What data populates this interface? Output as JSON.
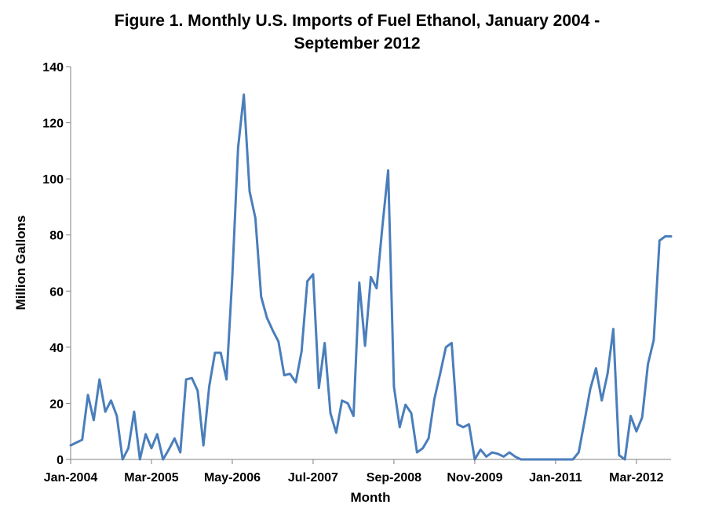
{
  "chart_data": {
    "type": "line",
    "title_lines": [
      "Figure 1.  Monthly U.S. Imports of Fuel Ethanol, January 2004 -",
      "September 2012"
    ],
    "xlabel": "Month",
    "ylabel": "Million Gallons",
    "ylim": [
      0,
      140
    ],
    "yticks": [
      0,
      20,
      40,
      60,
      80,
      100,
      120,
      140
    ],
    "x_range": [
      "Jan-2004",
      "Sep-2012"
    ],
    "xtick_labels": [
      "Jan-2004",
      "Mar-2005",
      "May-2006",
      "Jul-2007",
      "Sep-2008",
      "Nov-2009",
      "Jan-2011",
      "Mar-2012"
    ],
    "grid": false,
    "legend": "none",
    "color": "#4a7ebb",
    "series": [
      {
        "x": [
          "Jan-2004",
          "Feb-2004",
          "Mar-2004",
          "Apr-2004",
          "May-2004",
          "Jun-2004",
          "Jul-2004",
          "Aug-2004",
          "Sep-2004",
          "Oct-2004",
          "Nov-2004",
          "Dec-2004",
          "Jan-2005",
          "Feb-2005",
          "Mar-2005",
          "Apr-2005",
          "May-2005",
          "Jun-2005",
          "Jul-2005",
          "Aug-2005",
          "Sep-2005",
          "Oct-2005",
          "Nov-2005",
          "Dec-2005",
          "Jan-2006",
          "Feb-2006",
          "Mar-2006",
          "Apr-2006",
          "May-2006",
          "Jun-2006",
          "Jul-2006",
          "Aug-2006",
          "Sep-2006",
          "Oct-2006",
          "Nov-2006",
          "Dec-2006",
          "Jan-2007",
          "Feb-2007",
          "Mar-2007",
          "Apr-2007",
          "May-2007",
          "Jun-2007",
          "Jul-2007",
          "Aug-2007",
          "Sep-2007",
          "Oct-2007",
          "Nov-2007",
          "Dec-2007",
          "Jan-2008",
          "Feb-2008",
          "Mar-2008",
          "Apr-2008",
          "May-2008",
          "Jun-2008",
          "Jul-2008",
          "Aug-2008",
          "Sep-2008",
          "Oct-2008",
          "Nov-2008",
          "Dec-2008",
          "Jan-2009",
          "Feb-2009",
          "Mar-2009",
          "Apr-2009",
          "May-2009",
          "Jun-2009",
          "Jul-2009",
          "Aug-2009",
          "Sep-2009",
          "Oct-2009",
          "Nov-2009",
          "Dec-2009",
          "Jan-2010",
          "Feb-2010",
          "Mar-2010",
          "Apr-2010",
          "May-2010",
          "Jun-2010",
          "Jul-2010",
          "Aug-2010",
          "Sep-2010",
          "Oct-2010",
          "Nov-2010",
          "Dec-2010",
          "Jan-2011",
          "Feb-2011",
          "Mar-2011",
          "Apr-2011",
          "May-2011",
          "Jun-2011",
          "Jul-2011",
          "Aug-2011",
          "Sep-2011",
          "Oct-2011",
          "Nov-2011",
          "Dec-2011",
          "Jan-2012",
          "Feb-2012",
          "Mar-2012",
          "Apr-2012",
          "May-2012",
          "Jun-2012",
          "Jul-2012",
          "Aug-2012",
          "Sep-2012"
        ],
        "y": [
          5,
          6,
          7,
          23,
          14,
          28.5,
          17,
          21,
          15.5,
          0,
          4,
          17,
          0,
          9,
          4,
          9,
          0,
          3.5,
          7.5,
          2.5,
          28.5,
          29,
          24.5,
          5,
          26,
          38,
          38,
          28.5,
          65,
          111,
          130,
          95.5,
          86,
          58,
          50.5,
          46,
          42,
          30,
          30.5,
          27.5,
          38.5,
          63.5,
          66,
          25.5,
          41.5,
          16.5,
          9.5,
          21,
          20,
          15.5,
          63,
          40.5,
          65,
          61,
          83,
          103,
          26,
          11.5,
          19.5,
          16.5,
          2.5,
          4,
          7.5,
          21.5,
          30.5,
          40,
          41.5,
          12.5,
          11.5,
          12.5,
          0,
          3.5,
          1,
          2.5,
          2,
          1,
          2.5,
          1,
          0,
          0,
          0,
          0,
          0,
          0,
          0,
          0,
          0,
          0,
          2.5,
          13.5,
          25,
          32.5,
          21,
          30.5,
          46.5,
          1.5,
          0,
          15.5,
          10,
          15,
          34,
          42.5,
          78,
          79.5,
          79.5
        ]
      }
    ]
  }
}
